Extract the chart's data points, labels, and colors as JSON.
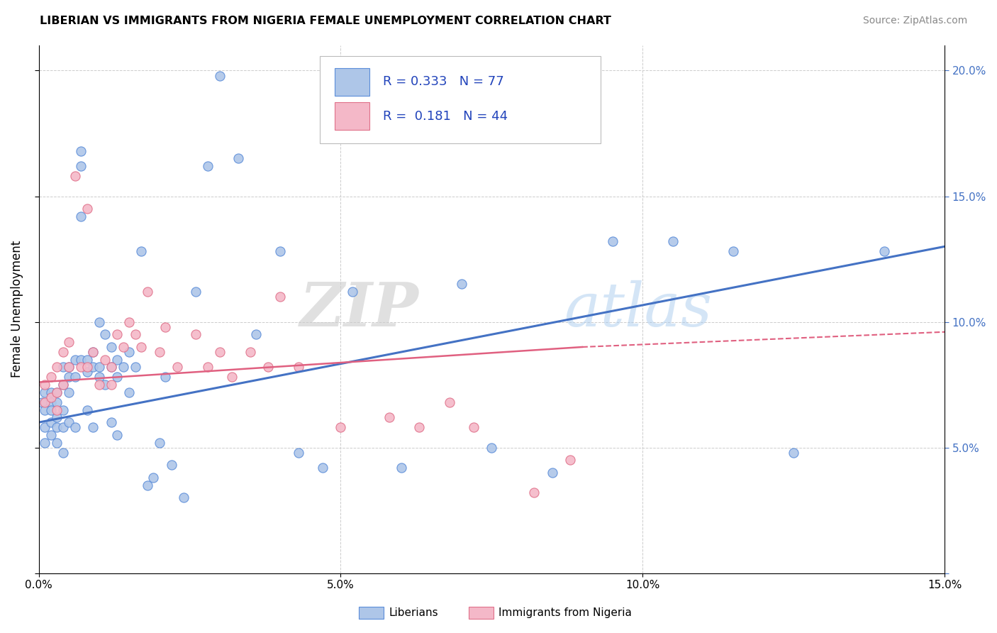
{
  "title": "LIBERIAN VS IMMIGRANTS FROM NIGERIA FEMALE UNEMPLOYMENT CORRELATION CHART",
  "source": "Source: ZipAtlas.com",
  "ylabel": "Female Unemployment",
  "x_min": 0.0,
  "x_max": 0.15,
  "y_min": 0.0,
  "y_max": 0.21,
  "x_ticks": [
    0.0,
    0.05,
    0.1,
    0.15
  ],
  "x_tick_labels": [
    "0.0%",
    "5.0%",
    "10.0%",
    "15.0%"
  ],
  "y_ticks": [
    0.0,
    0.05,
    0.1,
    0.15,
    0.2
  ],
  "y_tick_labels_right": [
    "",
    "5.0%",
    "10.0%",
    "15.0%",
    "20.0%"
  ],
  "blue_color": "#aec6e8",
  "blue_edge_color": "#5b8dd9",
  "blue_line_color": "#4472c4",
  "pink_color": "#f4b8c8",
  "pink_edge_color": "#e0708a",
  "pink_line_color": "#e06080",
  "text_color": "#2244bb",
  "legend_r1_val": "0.333",
  "legend_n1_val": "77",
  "legend_r2_val": "0.181",
  "legend_n2_val": "44",
  "label1": "Liberians",
  "label2": "Immigrants from Nigeria",
  "watermark_zip": "ZIP",
  "watermark_atlas": "atlas",
  "background_color": "#ffffff",
  "grid_color": "#cccccc",
  "blue_points_x": [
    0.0005,
    0.001,
    0.001,
    0.001,
    0.001,
    0.002,
    0.002,
    0.002,
    0.002,
    0.002,
    0.003,
    0.003,
    0.003,
    0.003,
    0.003,
    0.004,
    0.004,
    0.004,
    0.004,
    0.004,
    0.005,
    0.005,
    0.005,
    0.005,
    0.006,
    0.006,
    0.006,
    0.007,
    0.007,
    0.007,
    0.007,
    0.008,
    0.008,
    0.008,
    0.009,
    0.009,
    0.009,
    0.01,
    0.01,
    0.01,
    0.011,
    0.011,
    0.012,
    0.012,
    0.012,
    0.013,
    0.013,
    0.013,
    0.014,
    0.015,
    0.015,
    0.016,
    0.017,
    0.018,
    0.019,
    0.02,
    0.021,
    0.022,
    0.024,
    0.026,
    0.028,
    0.03,
    0.033,
    0.036,
    0.04,
    0.043,
    0.047,
    0.052,
    0.06,
    0.07,
    0.075,
    0.085,
    0.095,
    0.105,
    0.115,
    0.125,
    0.14
  ],
  "blue_points_y": [
    0.068,
    0.072,
    0.065,
    0.058,
    0.052,
    0.072,
    0.068,
    0.065,
    0.06,
    0.055,
    0.072,
    0.068,
    0.062,
    0.058,
    0.052,
    0.082,
    0.075,
    0.065,
    0.058,
    0.048,
    0.082,
    0.078,
    0.072,
    0.06,
    0.085,
    0.078,
    0.058,
    0.168,
    0.162,
    0.142,
    0.085,
    0.085,
    0.08,
    0.065,
    0.088,
    0.082,
    0.058,
    0.1,
    0.082,
    0.078,
    0.095,
    0.075,
    0.09,
    0.082,
    0.06,
    0.085,
    0.055,
    0.078,
    0.082,
    0.088,
    0.072,
    0.082,
    0.128,
    0.035,
    0.038,
    0.052,
    0.078,
    0.043,
    0.03,
    0.112,
    0.162,
    0.198,
    0.165,
    0.095,
    0.128,
    0.048,
    0.042,
    0.112,
    0.042,
    0.115,
    0.05,
    0.04,
    0.132,
    0.132,
    0.128,
    0.048,
    0.128
  ],
  "pink_points_x": [
    0.001,
    0.001,
    0.002,
    0.002,
    0.003,
    0.003,
    0.003,
    0.004,
    0.004,
    0.005,
    0.005,
    0.006,
    0.007,
    0.008,
    0.008,
    0.009,
    0.01,
    0.011,
    0.012,
    0.012,
    0.013,
    0.014,
    0.015,
    0.016,
    0.017,
    0.018,
    0.02,
    0.021,
    0.023,
    0.026,
    0.028,
    0.03,
    0.032,
    0.035,
    0.038,
    0.04,
    0.043,
    0.05,
    0.058,
    0.063,
    0.068,
    0.072,
    0.082,
    0.088
  ],
  "pink_points_y": [
    0.075,
    0.068,
    0.078,
    0.07,
    0.082,
    0.072,
    0.065,
    0.088,
    0.075,
    0.092,
    0.082,
    0.158,
    0.082,
    0.145,
    0.082,
    0.088,
    0.075,
    0.085,
    0.082,
    0.075,
    0.095,
    0.09,
    0.1,
    0.095,
    0.09,
    0.112,
    0.088,
    0.098,
    0.082,
    0.095,
    0.082,
    0.088,
    0.078,
    0.088,
    0.082,
    0.11,
    0.082,
    0.058,
    0.062,
    0.058,
    0.068,
    0.058,
    0.032,
    0.045
  ],
  "blue_trend_x0": 0.0,
  "blue_trend_y0": 0.06,
  "blue_trend_x1": 0.15,
  "blue_trend_y1": 0.13,
  "pink_trend_x0": 0.0,
  "pink_trend_y0": 0.076,
  "pink_trend_x1": 0.09,
  "pink_trend_y1": 0.09
}
